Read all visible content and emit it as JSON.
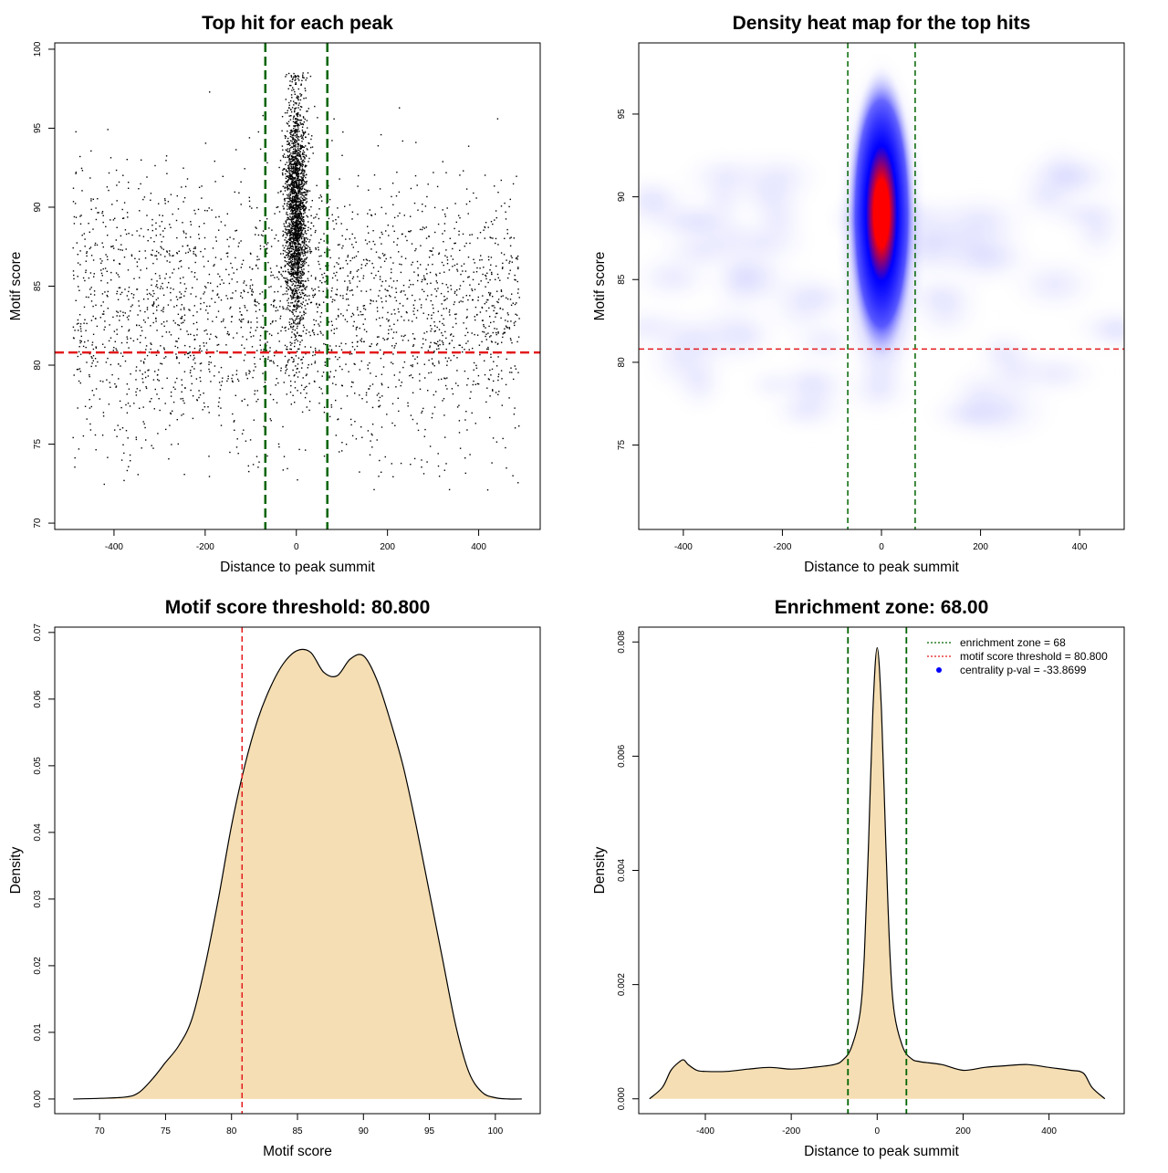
{
  "charts": [
    {
      "type": "scatter",
      "title": "Top hit for each peak",
      "xlabel": "Distance to peak summit",
      "ylabel": "Motif score",
      "xlim": [
        -530,
        535
      ],
      "ylim": [
        69.6,
        100.4
      ],
      "xticks": [
        "-400",
        "-200",
        "0",
        "200",
        "400"
      ],
      "xtick_values": [
        -400,
        -200,
        0,
        200,
        400
      ],
      "yticks": [
        "70",
        "75",
        "80",
        "85",
        "90",
        "95",
        "100"
      ],
      "ytick_values": [
        70,
        75,
        80,
        85,
        90,
        95,
        100
      ],
      "vlines": [
        -68,
        68
      ],
      "hline": 80.8,
      "vline_color": "#006400",
      "hline_color": "#e31a1c",
      "point_color": "#000000",
      "distribution": {
        "n_background": 2600,
        "background_x_range": [
          -490,
          490
        ],
        "background_y_mean": 83.5,
        "background_y_sd": 4.3,
        "n_central": 2100,
        "central_x_sd": 12,
        "central_y_mean": 90.0,
        "central_y_sd": 3.6,
        "score_cap": 98.5
      }
    },
    {
      "type": "heatmap",
      "title": "Density heat map for the top hits",
      "xlabel": "Distance to peak summit",
      "ylabel": "Motif score",
      "xlim": [
        -490,
        490
      ],
      "ylim": [
        69.9,
        99.3
      ],
      "xticks": [
        "-400",
        "-200",
        "0",
        "200",
        "400"
      ],
      "xtick_values": [
        -400,
        -200,
        0,
        200,
        400
      ],
      "yticks": [
        "75",
        "80",
        "85",
        "90",
        "95"
      ],
      "ytick_values": [
        75,
        80,
        85,
        90,
        95
      ],
      "vlines": [
        -68,
        68
      ],
      "hline": 80.8,
      "colors": [
        "#ffffff",
        "#0000ff",
        "#ff0000"
      ],
      "peak": {
        "x": 0,
        "y": 90.5
      }
    },
    {
      "type": "area",
      "title": "Motif score threshold: 80.800",
      "xlabel": "Motif score",
      "ylabel": "Density",
      "xlim": [
        66.6,
        103.4
      ],
      "ylim": [
        -0.0022,
        0.0708
      ],
      "xticks": [
        "70",
        "75",
        "80",
        "85",
        "90",
        "95",
        "100"
      ],
      "xtick_values": [
        70,
        75,
        80,
        85,
        90,
        95,
        100
      ],
      "yticks": [
        "0.00",
        "0.01",
        "0.02",
        "0.03",
        "0.04",
        "0.05",
        "0.06",
        "0.07"
      ],
      "ytick_values": [
        0,
        0.01,
        0.02,
        0.03,
        0.04,
        0.05,
        0.06,
        0.07
      ],
      "vline": 80.8,
      "fill": "#f5deb3",
      "x": [
        68,
        70,
        72,
        73,
        74,
        75,
        76,
        77,
        78,
        79,
        80,
        81,
        82,
        83,
        84,
        85,
        86,
        87,
        88,
        89,
        90,
        91,
        92,
        93,
        94,
        95,
        96,
        97,
        98,
        99,
        100,
        101,
        102
      ],
      "y": [
        0,
        0.0001,
        0.0003,
        0.001,
        0.003,
        0.0055,
        0.008,
        0.012,
        0.02,
        0.03,
        0.041,
        0.05,
        0.057,
        0.062,
        0.0655,
        0.0673,
        0.067,
        0.064,
        0.0635,
        0.066,
        0.0665,
        0.063,
        0.057,
        0.05,
        0.041,
        0.031,
        0.021,
        0.011,
        0.004,
        0.001,
        0.0002,
        0,
        0
      ]
    },
    {
      "type": "area",
      "title": "Enrichment zone: 68.00",
      "xlabel": "Distance to peak summit",
      "ylabel": "Density",
      "xlim": [
        -555,
        575
      ],
      "ylim": [
        -0.00026,
        0.00826
      ],
      "xticks": [
        "-400",
        "-200",
        "0",
        "200",
        "400"
      ],
      "xtick_values": [
        -400,
        -200,
        0,
        200,
        400
      ],
      "yticks": [
        "0.000",
        "0.002",
        "0.004",
        "0.006",
        "0.008"
      ],
      "ytick_values": [
        0,
        0.002,
        0.004,
        0.006,
        0.008
      ],
      "vlines": [
        -68,
        68
      ],
      "fill": "#f5deb3",
      "x": [
        -530,
        -500,
        -480,
        -460,
        -450,
        -440,
        -420,
        -400,
        -350,
        -300,
        -250,
        -200,
        -150,
        -100,
        -80,
        -60,
        -40,
        -30,
        -20,
        -10,
        0,
        10,
        20,
        30,
        40,
        60,
        80,
        100,
        150,
        200,
        250,
        300,
        350,
        400,
        450,
        480,
        500,
        530
      ],
      "y": [
        0,
        0.0002,
        0.0005,
        0.00065,
        0.00068,
        0.0006,
        0.0005,
        0.00048,
        0.00048,
        0.00052,
        0.00055,
        0.00052,
        0.00055,
        0.0006,
        0.00068,
        0.0009,
        0.0015,
        0.0025,
        0.0045,
        0.0068,
        0.0079,
        0.0068,
        0.0045,
        0.0025,
        0.0015,
        0.0009,
        0.0007,
        0.00065,
        0.0006,
        0.0005,
        0.00055,
        0.00058,
        0.0006,
        0.00055,
        0.0005,
        0.00045,
        0.0002,
        0
      ],
      "legend": [
        {
          "label": "enrichment zone = 68",
          "color": "#006400",
          "style": "dotted-line"
        },
        {
          "label": "motif score threshold = 80.800",
          "color": "#e31a1c",
          "style": "dotted-line"
        },
        {
          "label": "centrality p-val = -33.8699",
          "color": "#0000ff",
          "style": "point"
        }
      ],
      "legend_position": "top-right"
    }
  ]
}
